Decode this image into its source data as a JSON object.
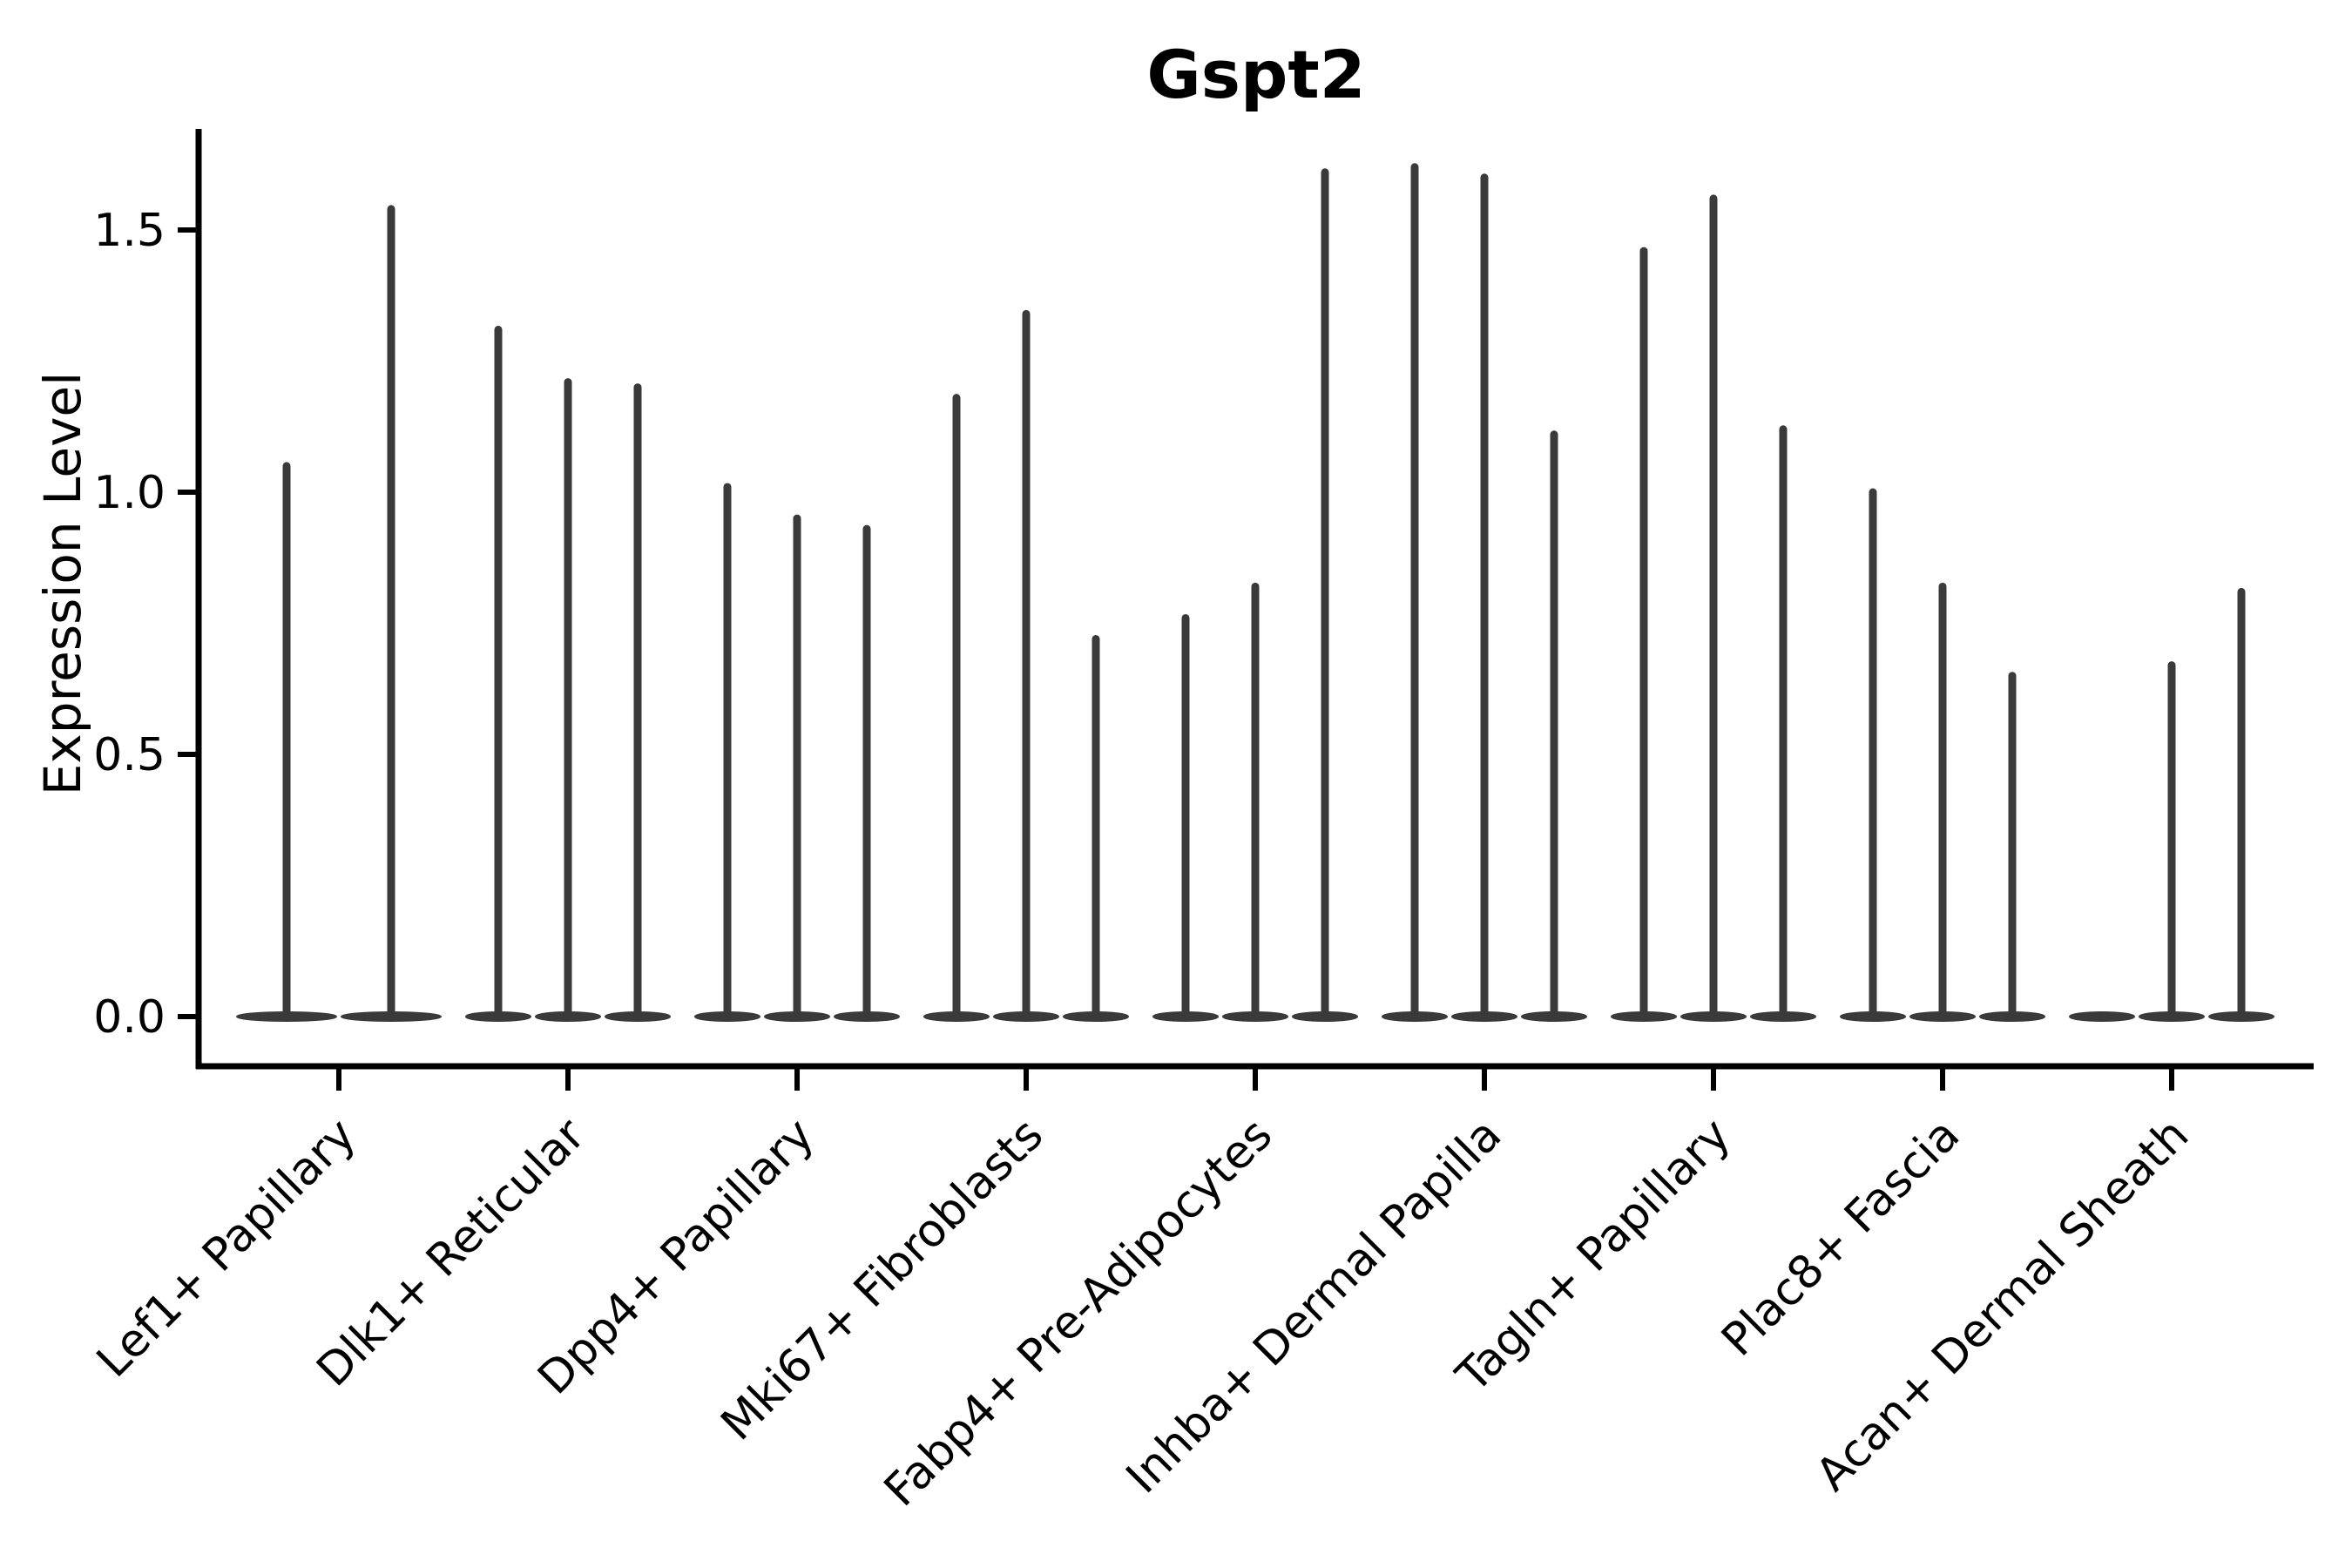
{
  "chart_data": {
    "type": "violin",
    "title": "Gspt2",
    "xlabel": "",
    "ylabel": "Expression Level",
    "y_ticks": [
      "0.0",
      "0.5",
      "1.0",
      "1.5"
    ],
    "ylim": [
      -0.095,
      1.69
    ],
    "grid": "off",
    "legend": "none",
    "violin_color": "#3a3a3a",
    "axis_color": "#000000",
    "categories": [
      "Lef1+ Papillary",
      "Dlk1+ Reticular",
      "Dpp4+ Papillary",
      "Mki67+ Fibroblasts",
      "Fabp4+ Pre-Adipocytes",
      "Inhba+ Dermal Papilla",
      "Tagln+ Papillary",
      "Plac8+ Fascia",
      "Acan+ Dermal Sheath"
    ],
    "groups": [
      {
        "label": "Lef1+ Papillary",
        "violin_maxima": [
          1.05,
          1.54
        ]
      },
      {
        "label": "Dlk1+ Reticular",
        "violin_maxima": [
          1.31,
          1.21,
          1.2
        ]
      },
      {
        "label": "Dpp4+ Papillary",
        "violin_maxima": [
          1.01,
          0.95,
          0.93
        ]
      },
      {
        "label": "Mki67+ Fibroblasts",
        "violin_maxima": [
          1.18,
          1.34,
          0.72
        ]
      },
      {
        "label": "Fabp4+ Pre-Adipocytes",
        "violin_maxima": [
          0.76,
          0.82,
          1.61
        ]
      },
      {
        "label": "Inhba+ Dermal Papilla",
        "violin_maxima": [
          1.62,
          1.6,
          1.11
        ]
      },
      {
        "label": "Tagln+ Papillary",
        "violin_maxima": [
          1.46,
          1.56,
          1.12
        ]
      },
      {
        "label": "Plac8+ Fascia",
        "violin_maxima": [
          1.0,
          0.82,
          0.65
        ]
      },
      {
        "label": "Acan+ Dermal Sheath",
        "violin_maxima": [
          0.0,
          0.67,
          0.81
        ]
      }
    ],
    "notes": "Single-cell expression violin plot; each group shows 2-3 thin violins (mostly-zero expression with narrow spikes to the max value)."
  }
}
